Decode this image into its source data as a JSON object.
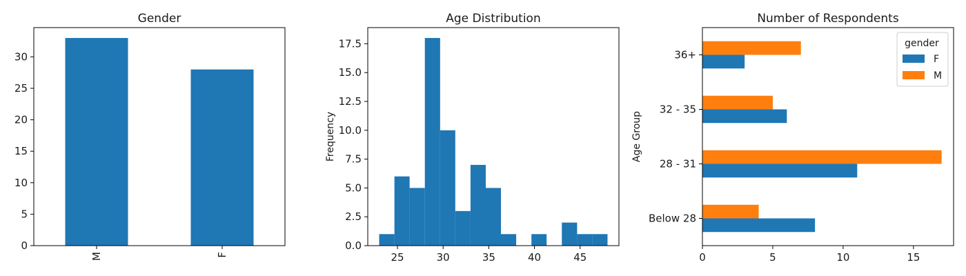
{
  "colors": {
    "blue": "#1f77b4",
    "orange": "#ff7f0e"
  },
  "chart_data": [
    {
      "type": "bar",
      "title": "Gender",
      "categories": [
        "M",
        "F"
      ],
      "values": [
        33,
        28
      ],
      "ylim": [
        0,
        34.65
      ],
      "yticks": [
        0,
        5,
        10,
        15,
        20,
        25,
        30
      ],
      "ytick_labels": [
        "0",
        "5",
        "10",
        "15",
        "20",
        "25",
        "30"
      ],
      "xlabel": "",
      "ylabel": "",
      "grid": false
    },
    {
      "type": "bar",
      "title": "Age Distribution",
      "ylabel": "Frequency",
      "xlabel": "",
      "bin_edges": [
        23.0,
        24.67,
        26.33,
        28.0,
        29.67,
        31.33,
        33.0,
        34.67,
        36.33,
        38.0,
        39.67,
        41.33,
        43.0,
        44.67,
        46.33,
        48.0
      ],
      "values": [
        1,
        6,
        5,
        18,
        10,
        3,
        7,
        5,
        1,
        0,
        1,
        0,
        2,
        1,
        1
      ],
      "xlim": [
        21.75,
        49.25
      ],
      "ylim": [
        0,
        18.9
      ],
      "xticks": [
        25,
        30,
        35,
        40,
        45
      ],
      "xtick_labels": [
        "25",
        "30",
        "35",
        "40",
        "45"
      ],
      "yticks": [
        0,
        2.5,
        5,
        7.5,
        10,
        12.5,
        15,
        17.5
      ],
      "ytick_labels": [
        "0.0",
        "2.5",
        "5.0",
        "7.5",
        "10.0",
        "12.5",
        "15.0",
        "17.5"
      ],
      "grid": false
    },
    {
      "type": "bar",
      "orientation": "horizontal",
      "title": "Number of Respondents",
      "ylabel": "Age Group",
      "xlabel": "",
      "categories": [
        "Below 28",
        "28 - 31",
        "32 - 35",
        "36+"
      ],
      "series": [
        {
          "name": "F",
          "values": [
            8,
            11,
            6,
            3
          ]
        },
        {
          "name": "M",
          "values": [
            4,
            17,
            5,
            7
          ]
        }
      ],
      "legend_title": "gender",
      "legend_position": "top-right",
      "xlim": [
        0,
        17.85
      ],
      "xticks": [
        0,
        5,
        10,
        15
      ],
      "xtick_labels": [
        "0",
        "5",
        "10",
        "15"
      ],
      "grid": false
    }
  ]
}
